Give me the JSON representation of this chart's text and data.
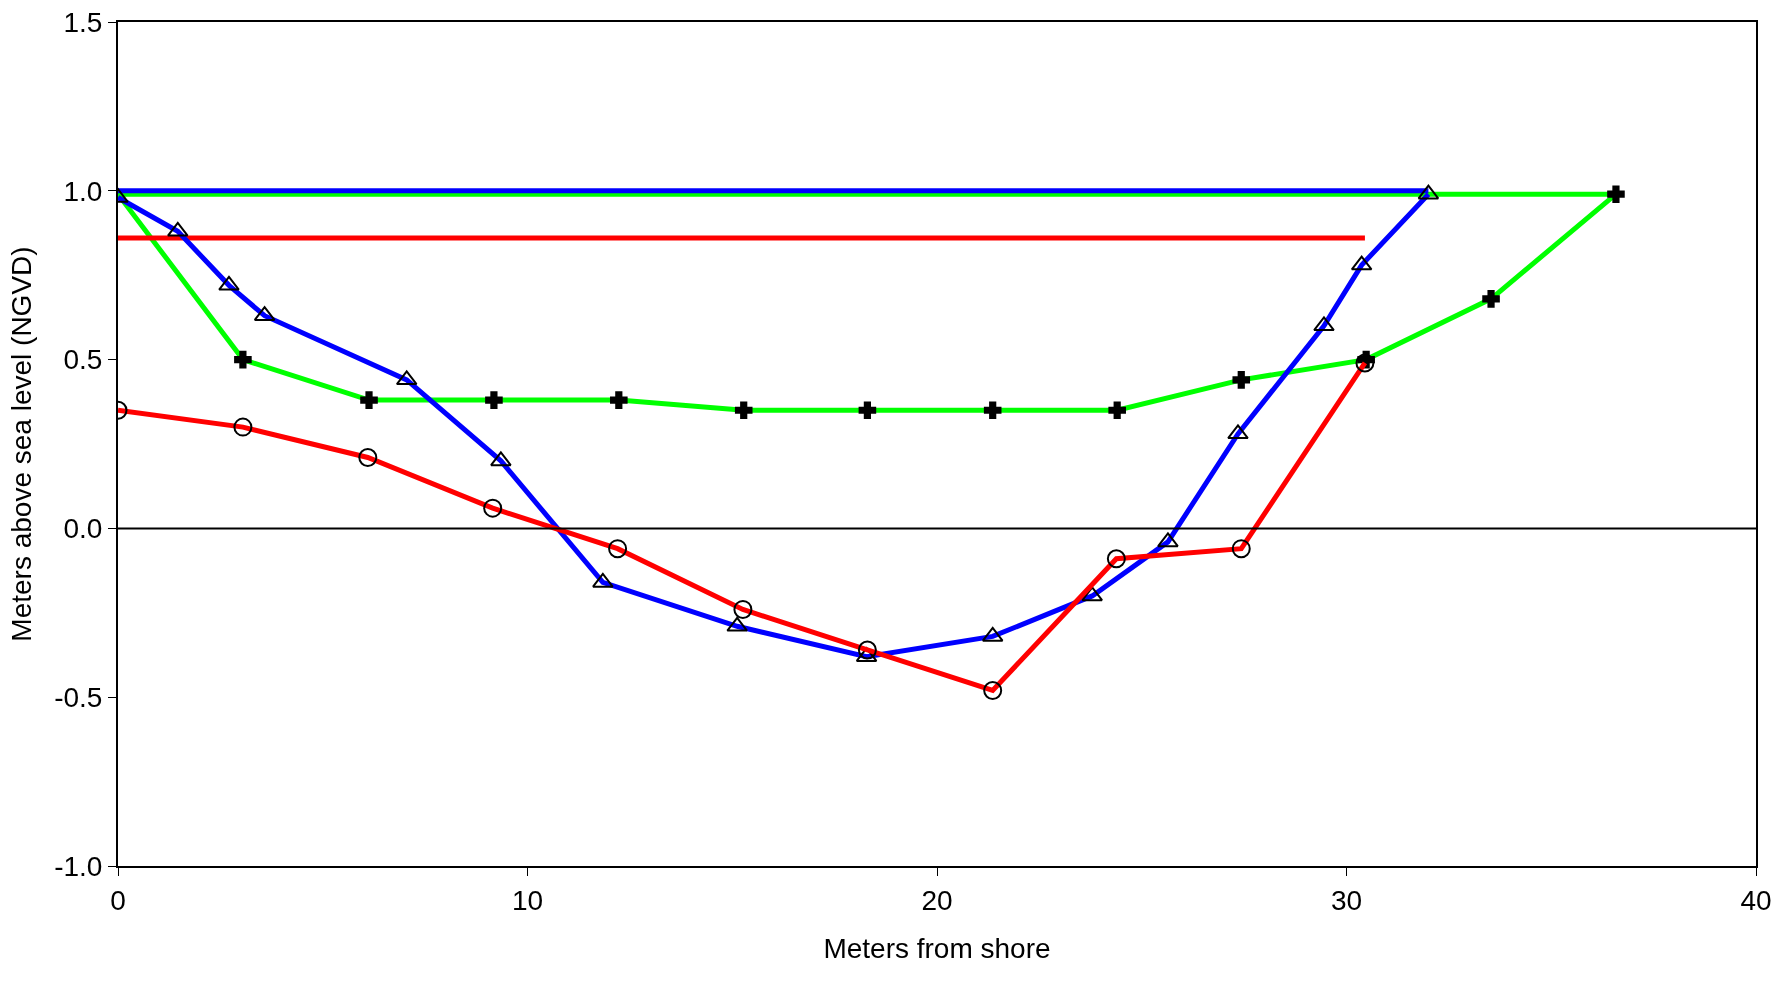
{
  "chart_data": {
    "type": "line",
    "xlabel": "Meters from shore",
    "ylabel": "Meters above sea level (NGVD)",
    "xlim": [
      0,
      40
    ],
    "xticks": [
      0,
      10,
      20,
      30,
      40
    ],
    "ylim": [
      -1,
      1.5
    ],
    "yticks": [
      {
        "value": -1,
        "label": "-1.0"
      },
      -0.5,
      {
        "value": 0,
        "label": "0.0"
      },
      0.5,
      {
        "value": 1,
        "label": "1.0"
      },
      1.5
    ],
    "grid": false,
    "ref_lines": [
      {
        "axis": "y",
        "value": 0,
        "color": "#000000"
      }
    ],
    "series": [
      {
        "color": "#00ff00",
        "x": [
          3.05,
          0,
          36.58
        ],
        "values": [
          0.5,
          0.99,
          0.99
        ]
      },
      {
        "color": "#0000ff",
        "x": [
          0,
          32
        ],
        "values": [
          1.0,
          1.0
        ]
      },
      {
        "color": "#ff0000",
        "x": [
          0,
          30.45
        ],
        "values": [
          0.86,
          0.86
        ]
      },
      {
        "color": "#00ff00",
        "marker": "cross",
        "x": [
          3.05,
          6.13,
          9.18,
          12.23,
          15.28,
          18.3,
          21.36,
          24.4,
          27.43,
          30.48,
          33.53,
          36.58
        ],
        "values": [
          0.5,
          0.38,
          0.38,
          0.38,
          0.35,
          0.35,
          0.35,
          0.35,
          0.44,
          0.5,
          0.68,
          0.99
        ]
      },
      {
        "color": "#0000ff",
        "marker": "triangle",
        "x": [
          0,
          1.46,
          2.71,
          3.58,
          7.05,
          9.35,
          11.84,
          15.12,
          18.28,
          21.36,
          23.79,
          25.64,
          27.35,
          29.45,
          30.37,
          32
        ],
        "values": [
          0.98,
          0.88,
          0.72,
          0.63,
          0.44,
          0.2,
          -0.16,
          -0.29,
          -0.38,
          -0.32,
          -0.2,
          -0.04,
          0.28,
          0.6,
          0.78,
          0.99
        ]
      },
      {
        "color": "#ff0000",
        "marker": "circle",
        "x": [
          0,
          3.05,
          6.1,
          9.15,
          12.2,
          15.26,
          18.3,
          21.36,
          24.38,
          27.43,
          30.45
        ],
        "values": [
          0.35,
          0.3,
          0.21,
          0.06,
          -0.06,
          -0.24,
          -0.36,
          -0.48,
          -0.09,
          -0.06,
          0.49
        ]
      }
    ]
  }
}
